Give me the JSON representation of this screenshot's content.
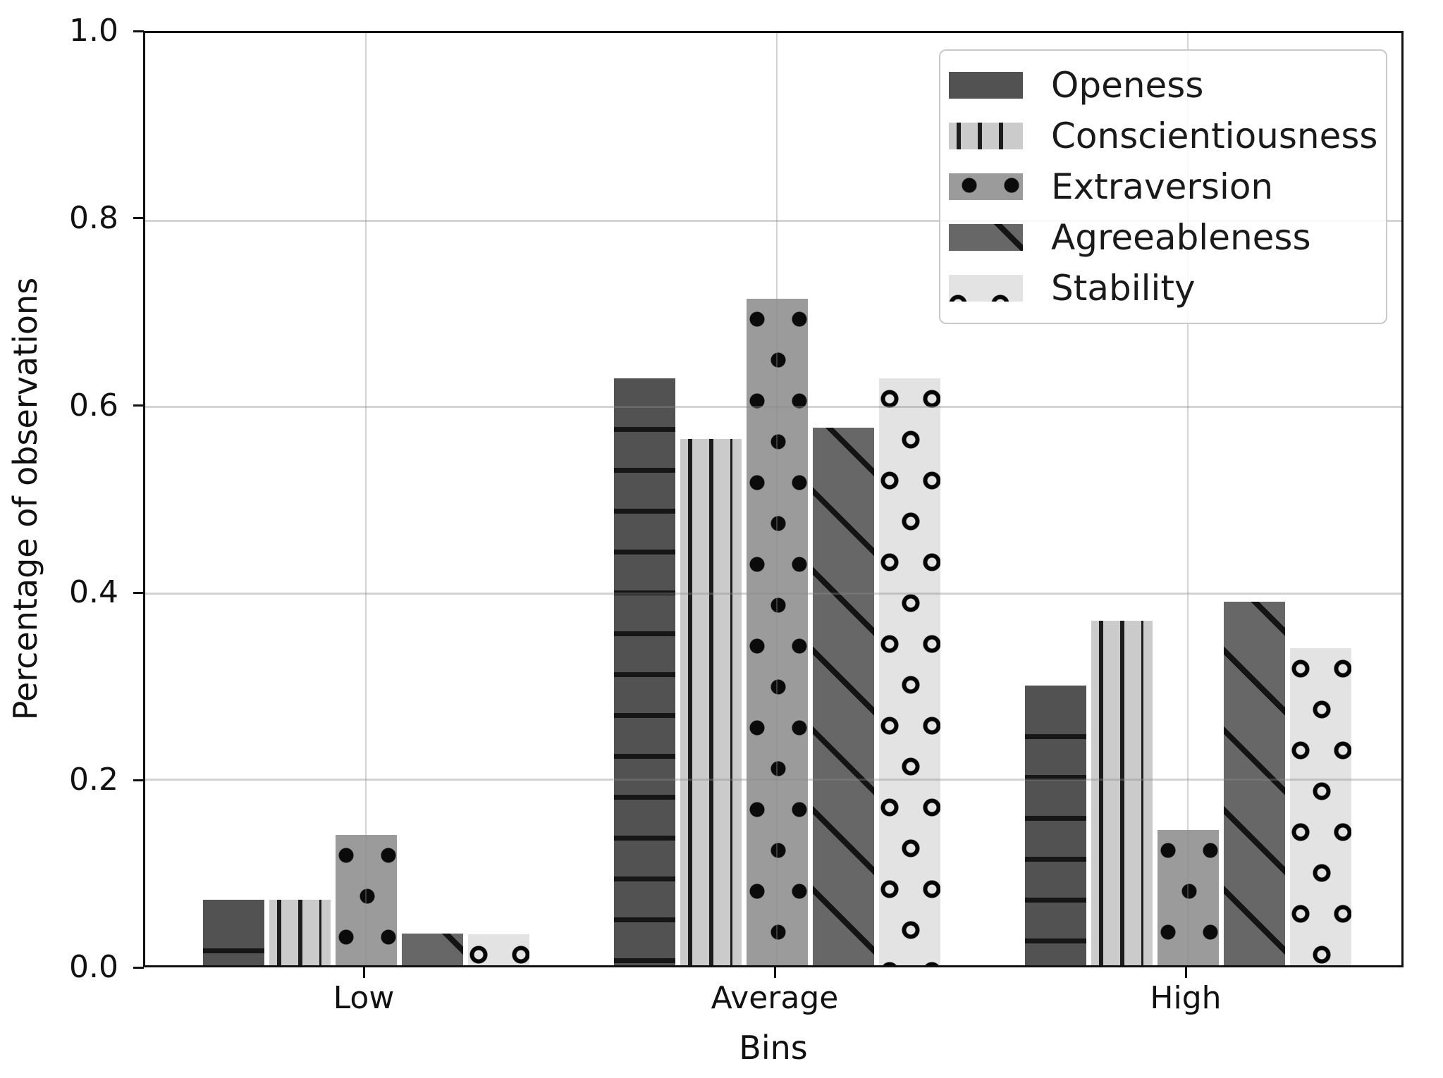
{
  "chart_data": {
    "type": "bar",
    "title": "",
    "xlabel": "Bins",
    "ylabel": "Percentage of observations",
    "categories": [
      "Low",
      "Average",
      "High"
    ],
    "series": [
      {
        "name": "Openess",
        "color": "#525252",
        "hatch": "horizontal-line",
        "values": [
          0.07,
          0.63,
          0.3
        ]
      },
      {
        "name": "Conscientiousness",
        "color": "#cbcbcb",
        "hatch": "vertical-line",
        "values": [
          0.07,
          0.565,
          0.37
        ]
      },
      {
        "name": "Extraversion",
        "color": "#9b9b9b",
        "hatch": "dot",
        "values": [
          0.14,
          0.715,
          0.145
        ]
      },
      {
        "name": "Agreeableness",
        "color": "#676767",
        "hatch": "diagonal-line",
        "values": [
          0.034,
          0.577,
          0.39
        ]
      },
      {
        "name": "Stability",
        "color": "#e3e3e3",
        "hatch": "circle",
        "values": [
          0.033,
          0.63,
          0.34
        ]
      }
    ],
    "ylim": [
      0.0,
      1.0
    ],
    "yticks": [
      0.0,
      0.2,
      0.4,
      0.6,
      0.8,
      1.0
    ],
    "grid": true,
    "legend_position": "upper right",
    "hatch_color": "#111111",
    "grid_color": "#d3d3d3",
    "axis_color": "#111111",
    "background_color": "#ffffff"
  }
}
